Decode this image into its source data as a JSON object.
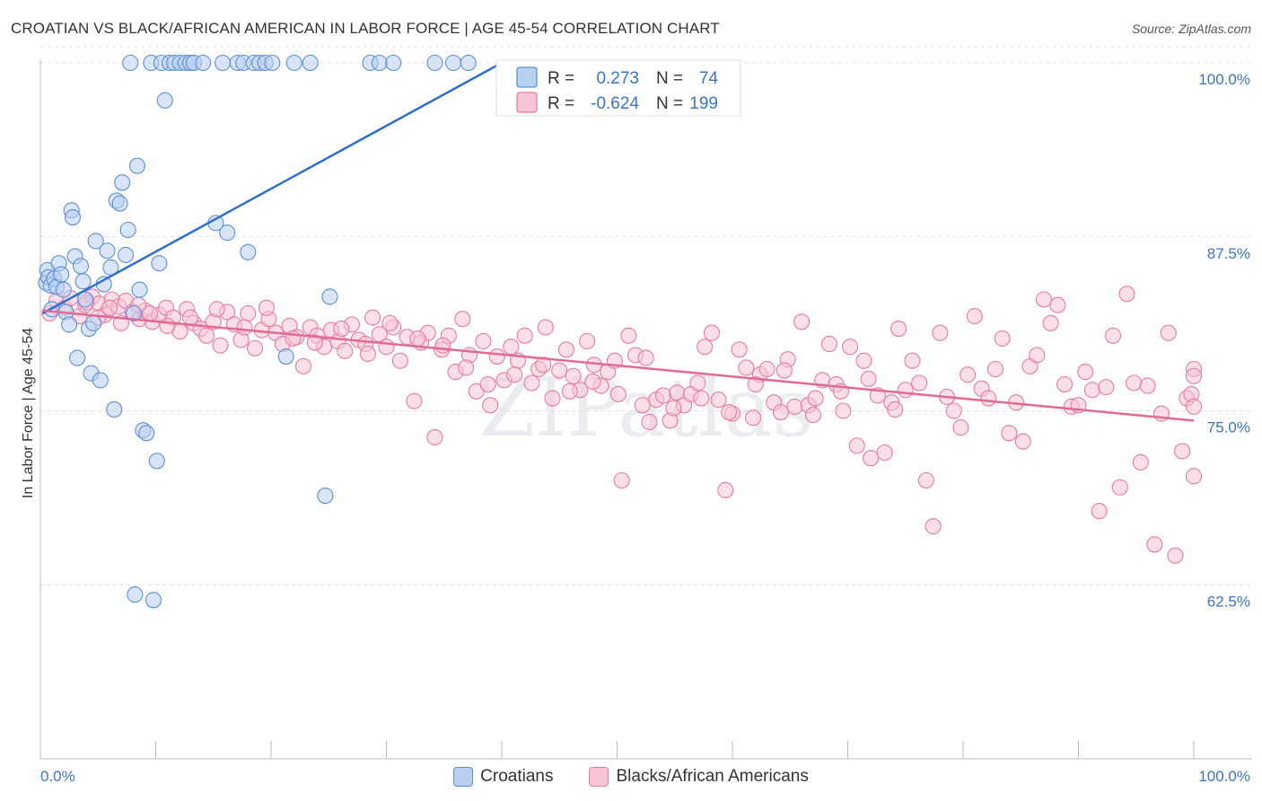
{
  "title": "CROATIAN VS BLACK/AFRICAN AMERICAN IN LABOR FORCE | AGE 45-54 CORRELATION CHART",
  "source": "Source: ZipAtlas.com",
  "watermark": "ZIPatlas",
  "chart_data": {
    "type": "scatter",
    "xlabel": "",
    "ylabel": "In Labor Force | Age 45-54",
    "xlim": [
      0,
      100
    ],
    "ylim": [
      50,
      100
    ],
    "x_tick_labels": [
      "0.0%",
      "100.0%"
    ],
    "y_ticks": [
      62.5,
      75.0,
      87.5,
      100.0
    ],
    "y_tick_labels": [
      "62.5%",
      "75.0%",
      "87.5%",
      "100.0%"
    ],
    "grid": true,
    "legend_position": "top-center",
    "stats": [
      {
        "r_label": "R =",
        "r": "0.273",
        "n_label": "N =",
        "n": "74"
      },
      {
        "r_label": "R =",
        "r": "-0.624",
        "n_label": "N =",
        "n": "199"
      }
    ],
    "series": [
      {
        "name": "Croatians",
        "color": "#5b8fd6",
        "fill": "#b9d0f0",
        "trend": {
          "x": [
            0.2,
            40
          ],
          "y": [
            82.0,
            100.0
          ]
        },
        "points": [
          [
            0.5,
            84.2
          ],
          [
            0.6,
            85.1
          ],
          [
            0.7,
            84.6
          ],
          [
            0.9,
            84.0
          ],
          [
            1.0,
            82.3
          ],
          [
            1.2,
            84.5
          ],
          [
            1.4,
            83.9
          ],
          [
            1.6,
            85.6
          ],
          [
            1.8,
            84.8
          ],
          [
            2.0,
            83.7
          ],
          [
            2.2,
            82.1
          ],
          [
            2.5,
            81.2
          ],
          [
            2.7,
            89.4
          ],
          [
            2.8,
            88.9
          ],
          [
            3.0,
            86.1
          ],
          [
            3.2,
            78.8
          ],
          [
            3.5,
            85.4
          ],
          [
            3.7,
            84.3
          ],
          [
            3.9,
            83.0
          ],
          [
            4.2,
            80.9
          ],
          [
            4.4,
            77.7
          ],
          [
            4.6,
            81.3
          ],
          [
            4.8,
            87.2
          ],
          [
            5.2,
            77.2
          ],
          [
            5.5,
            84.1
          ],
          [
            5.8,
            86.5
          ],
          [
            6.1,
            85.3
          ],
          [
            6.4,
            75.1
          ],
          [
            6.6,
            90.1
          ],
          [
            6.9,
            89.9
          ],
          [
            7.1,
            91.4
          ],
          [
            7.4,
            86.2
          ],
          [
            7.6,
            88.0
          ],
          [
            7.8,
            100.0
          ],
          [
            8.1,
            82.0
          ],
          [
            8.4,
            92.6
          ],
          [
            8.6,
            83.7
          ],
          [
            8.9,
            73.6
          ],
          [
            9.2,
            73.4
          ],
          [
            9.6,
            100.0
          ],
          [
            10.1,
            71.4
          ],
          [
            10.3,
            85.6
          ],
          [
            10.5,
            100.0
          ],
          [
            10.8,
            97.3
          ],
          [
            11.2,
            100.0
          ],
          [
            11.6,
            100.0
          ],
          [
            12.1,
            100.0
          ],
          [
            12.6,
            100.0
          ],
          [
            13.0,
            100.0
          ],
          [
            13.3,
            100.0
          ],
          [
            14.1,
            100.0
          ],
          [
            15.2,
            88.5
          ],
          [
            15.8,
            100.0
          ],
          [
            16.2,
            87.8
          ],
          [
            17.1,
            100.0
          ],
          [
            17.6,
            100.0
          ],
          [
            18.0,
            86.4
          ],
          [
            18.5,
            100.0
          ],
          [
            19.0,
            100.0
          ],
          [
            19.5,
            100.0
          ],
          [
            20.1,
            100.0
          ],
          [
            21.3,
            78.9
          ],
          [
            22.0,
            100.0
          ],
          [
            23.4,
            100.0
          ],
          [
            24.7,
            68.9
          ],
          [
            25.1,
            83.2
          ],
          [
            28.6,
            100.0
          ],
          [
            29.4,
            100.0
          ],
          [
            30.6,
            100.0
          ],
          [
            34.2,
            100.0
          ],
          [
            35.8,
            100.0
          ],
          [
            37.1,
            100.0
          ],
          [
            8.2,
            61.8
          ],
          [
            9.8,
            61.4
          ]
        ]
      },
      {
        "name": "Blacks/African Americans",
        "color": "#e87aa0",
        "fill": "#f6c5d5",
        "trend": {
          "x": [
            0.2,
            100
          ],
          "y": [
            82.2,
            74.3
          ]
        },
        "points": [
          [
            0.8,
            82.0
          ],
          [
            1.4,
            82.9
          ],
          [
            2.1,
            82.4
          ],
          [
            2.6,
            83.1
          ],
          [
            3.4,
            81.8
          ],
          [
            3.9,
            82.6
          ],
          [
            4.5,
            83.2
          ],
          [
            5.1,
            82.7
          ],
          [
            5.6,
            81.9
          ],
          [
            6.2,
            83.0
          ],
          [
            6.8,
            82.5
          ],
          [
            7.4,
            82.9
          ],
          [
            8.0,
            82.1
          ],
          [
            8.6,
            81.6
          ],
          [
            9.1,
            82.2
          ],
          [
            9.7,
            81.4
          ],
          [
            10.3,
            81.9
          ],
          [
            10.9,
            82.4
          ],
          [
            11.5,
            81.7
          ],
          [
            12.1,
            80.7
          ],
          [
            12.7,
            82.3
          ],
          [
            13.3,
            81.3
          ],
          [
            13.9,
            80.9
          ],
          [
            14.4,
            80.4
          ],
          [
            15.0,
            81.4
          ],
          [
            15.6,
            79.7
          ],
          [
            16.2,
            82.1
          ],
          [
            16.8,
            81.2
          ],
          [
            17.4,
            80.1
          ],
          [
            18.0,
            82.0
          ],
          [
            18.6,
            79.5
          ],
          [
            19.2,
            80.8
          ],
          [
            19.8,
            81.6
          ],
          [
            20.4,
            80.6
          ],
          [
            21.0,
            79.8
          ],
          [
            21.6,
            81.1
          ],
          [
            22.2,
            80.3
          ],
          [
            22.8,
            78.2
          ],
          [
            23.4,
            81.0
          ],
          [
            24.0,
            80.4
          ],
          [
            24.6,
            79.6
          ],
          [
            25.2,
            80.8
          ],
          [
            25.8,
            80.0
          ],
          [
            26.4,
            79.3
          ],
          [
            27.0,
            81.2
          ],
          [
            27.6,
            80.1
          ],
          [
            28.2,
            79.8
          ],
          [
            28.8,
            81.7
          ],
          [
            29.4,
            80.5
          ],
          [
            30.0,
            79.6
          ],
          [
            30.6,
            81.0
          ],
          [
            31.2,
            78.6
          ],
          [
            31.8,
            80.3
          ],
          [
            32.4,
            75.7
          ],
          [
            33.0,
            79.9
          ],
          [
            33.6,
            80.6
          ],
          [
            34.2,
            73.1
          ],
          [
            34.8,
            79.4
          ],
          [
            35.4,
            80.4
          ],
          [
            36.0,
            77.8
          ],
          [
            36.6,
            81.6
          ],
          [
            37.2,
            79.0
          ],
          [
            37.8,
            76.4
          ],
          [
            38.4,
            80.0
          ],
          [
            39.0,
            75.4
          ],
          [
            39.6,
            78.9
          ],
          [
            40.2,
            77.2
          ],
          [
            40.8,
            79.6
          ],
          [
            41.4,
            78.6
          ],
          [
            42.0,
            80.4
          ],
          [
            42.6,
            77.0
          ],
          [
            43.2,
            78.0
          ],
          [
            43.8,
            81.0
          ],
          [
            44.4,
            75.9
          ],
          [
            45.0,
            77.9
          ],
          [
            45.6,
            79.4
          ],
          [
            46.2,
            77.5
          ],
          [
            46.8,
            76.5
          ],
          [
            47.4,
            80.0
          ],
          [
            48.0,
            78.3
          ],
          [
            48.6,
            76.8
          ],
          [
            49.2,
            77.8
          ],
          [
            49.8,
            78.6
          ],
          [
            50.4,
            70.0
          ],
          [
            51.0,
            80.4
          ],
          [
            51.6,
            79.0
          ],
          [
            52.2,
            75.4
          ],
          [
            52.8,
            74.2
          ],
          [
            53.4,
            75.8
          ],
          [
            54.0,
            76.1
          ],
          [
            54.6,
            74.3
          ],
          [
            55.2,
            76.3
          ],
          [
            55.8,
            75.4
          ],
          [
            56.4,
            76.2
          ],
          [
            57.0,
            77.0
          ],
          [
            57.6,
            79.6
          ],
          [
            58.2,
            80.6
          ],
          [
            58.8,
            75.8
          ],
          [
            59.4,
            69.3
          ],
          [
            60.0,
            74.8
          ],
          [
            60.6,
            79.4
          ],
          [
            61.2,
            78.1
          ],
          [
            61.8,
            74.5
          ],
          [
            62.4,
            77.6
          ],
          [
            63.0,
            78.0
          ],
          [
            63.6,
            75.6
          ],
          [
            64.2,
            74.9
          ],
          [
            64.8,
            78.7
          ],
          [
            65.4,
            75.3
          ],
          [
            66.0,
            81.4
          ],
          [
            66.6,
            75.4
          ],
          [
            67.2,
            75.9
          ],
          [
            67.8,
            77.2
          ],
          [
            68.4,
            79.8
          ],
          [
            69.0,
            76.9
          ],
          [
            69.6,
            75.0
          ],
          [
            70.2,
            79.6
          ],
          [
            70.8,
            72.5
          ],
          [
            71.4,
            78.6
          ],
          [
            72.0,
            71.6
          ],
          [
            72.6,
            76.1
          ],
          [
            73.2,
            72.0
          ],
          [
            73.8,
            75.6
          ],
          [
            74.4,
            80.9
          ],
          [
            75.0,
            76.5
          ],
          [
            75.6,
            78.6
          ],
          [
            76.2,
            77.0
          ],
          [
            76.8,
            70.0
          ],
          [
            77.4,
            66.7
          ],
          [
            78.0,
            80.6
          ],
          [
            78.6,
            76.0
          ],
          [
            79.2,
            75.0
          ],
          [
            79.8,
            73.8
          ],
          [
            80.4,
            77.6
          ],
          [
            81.0,
            81.8
          ],
          [
            81.6,
            76.6
          ],
          [
            82.2,
            75.9
          ],
          [
            82.8,
            78.0
          ],
          [
            83.4,
            80.2
          ],
          [
            84.0,
            73.4
          ],
          [
            84.6,
            75.6
          ],
          [
            85.2,
            72.8
          ],
          [
            85.8,
            78.2
          ],
          [
            86.4,
            79.0
          ],
          [
            87.0,
            83.0
          ],
          [
            87.6,
            81.3
          ],
          [
            88.2,
            82.6
          ],
          [
            88.8,
            76.9
          ],
          [
            89.4,
            75.3
          ],
          [
            90.0,
            75.4
          ],
          [
            90.6,
            77.8
          ],
          [
            91.2,
            76.5
          ],
          [
            91.8,
            67.8
          ],
          [
            92.4,
            76.7
          ],
          [
            93.0,
            80.4
          ],
          [
            93.6,
            69.5
          ],
          [
            94.2,
            83.4
          ],
          [
            94.8,
            77.0
          ],
          [
            95.4,
            71.3
          ],
          [
            96.0,
            76.8
          ],
          [
            96.6,
            65.4
          ],
          [
            97.2,
            74.8
          ],
          [
            97.8,
            80.6
          ],
          [
            98.4,
            64.6
          ],
          [
            99.0,
            72.1
          ],
          [
            99.4,
            75.9
          ],
          [
            99.8,
            76.2
          ],
          [
            100.0,
            70.3
          ],
          [
            100.0,
            75.3
          ],
          [
            100.0,
            78.0
          ],
          [
            100.0,
            77.5
          ],
          [
            4.0,
            82.8
          ],
          [
            5.0,
            81.7
          ],
          [
            6.0,
            82.4
          ],
          [
            7.0,
            81.3
          ],
          [
            8.5,
            82.6
          ],
          [
            9.5,
            82.0
          ],
          [
            11.0,
            81.1
          ],
          [
            13.0,
            81.7
          ],
          [
            15.3,
            82.3
          ],
          [
            17.7,
            81.0
          ],
          [
            19.6,
            82.4
          ],
          [
            21.9,
            80.2
          ],
          [
            23.8,
            79.9
          ],
          [
            26.1,
            80.9
          ],
          [
            28.4,
            79.1
          ],
          [
            30.3,
            81.3
          ],
          [
            32.7,
            80.2
          ],
          [
            34.9,
            79.7
          ],
          [
            36.9,
            78.1
          ],
          [
            38.8,
            76.9
          ],
          [
            41.1,
            77.6
          ],
          [
            43.6,
            78.3
          ],
          [
            45.9,
            76.4
          ],
          [
            47.9,
            77.1
          ],
          [
            50.1,
            76.2
          ],
          [
            52.5,
            78.8
          ],
          [
            54.9,
            75.2
          ],
          [
            57.3,
            75.9
          ],
          [
            59.7,
            74.9
          ],
          [
            62.0,
            76.9
          ],
          [
            64.5,
            77.9
          ],
          [
            67.0,
            74.7
          ],
          [
            69.4,
            76.4
          ],
          [
            71.8,
            77.3
          ],
          [
            74.1,
            75.1
          ]
        ]
      }
    ]
  }
}
